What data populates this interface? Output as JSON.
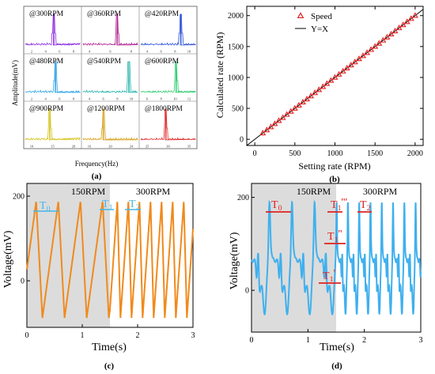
{
  "chart_data": [
    {
      "type": "line",
      "panel_label": "(a)",
      "xlabel": "Frequency(Hz)",
      "ylabel": "Amplitude(mV)",
      "subplots": [
        {
          "label": "@300RPM",
          "color": "#8a2be2",
          "peak_hz": 5,
          "x_ticks": [
            "2",
            "4",
            "6",
            "8"
          ]
        },
        {
          "label": "@360RPM",
          "color": "#b0208f",
          "peak_hz": 6,
          "x_ticks": [
            "4",
            "6",
            "8"
          ]
        },
        {
          "label": "@420RPM",
          "color": "#2b4fd8",
          "peak_hz": 7,
          "x_ticks": [
            "4",
            "6",
            "8",
            "10"
          ]
        },
        {
          "label": "@480RPM",
          "color": "#2aa3e6",
          "peak_hz": 8,
          "x_ticks": [
            "2",
            "4",
            "6",
            "8"
          ]
        },
        {
          "label": "@540RPM",
          "color": "#20b2aa",
          "peak_hz": 9,
          "x_ticks": [
            "4",
            "6",
            "8",
            "10"
          ]
        },
        {
          "label": "@600RPM",
          "color": "#2ecc71",
          "peak_hz": 10,
          "x_ticks": [
            "6",
            "8",
            "10",
            "12"
          ]
        },
        {
          "label": "@900RPM",
          "color": "#d4c21a",
          "peak_hz": 15,
          "x_ticks": [
            "10",
            "15",
            "20"
          ]
        },
        {
          "label": "@1200RPM",
          "color": "#d4a017",
          "peak_hz": 20,
          "x_ticks": [
            "16",
            "20",
            "24"
          ]
        },
        {
          "label": "@1800RPM",
          "color": "#e03030",
          "peak_hz": 30,
          "x_ticks": [
            "25",
            "30",
            "35"
          ]
        }
      ]
    },
    {
      "type": "scatter",
      "panel_label": "(b)",
      "xlabel": "Setting rate  (RPM)",
      "ylabel": "Calculated rate  (RPM)",
      "xlim": [
        -100,
        2100
      ],
      "ylim": [
        -100,
        2150
      ],
      "x_ticks": [
        0,
        500,
        1000,
        1500,
        2000
      ],
      "y_ticks": [
        0,
        500,
        1000,
        1500,
        2000
      ],
      "legend_position": "top-left",
      "series": [
        {
          "name": "Speed",
          "marker": "triangle",
          "color": "#e02020",
          "x": [
            100,
            150,
            200,
            250,
            300,
            350,
            400,
            450,
            500,
            550,
            600,
            650,
            700,
            750,
            800,
            850,
            900,
            950,
            1000,
            1050,
            1100,
            1150,
            1200,
            1250,
            1300,
            1350,
            1400,
            1450,
            1500,
            1550,
            1600,
            1650,
            1700,
            1750,
            1800,
            1850,
            1900,
            1950,
            2000
          ],
          "y": [
            100,
            150,
            200,
            250,
            300,
            350,
            400,
            450,
            500,
            550,
            600,
            650,
            700,
            750,
            800,
            850,
            900,
            950,
            1000,
            1050,
            1100,
            1150,
            1200,
            1250,
            1300,
            1350,
            1400,
            1450,
            1500,
            1550,
            1600,
            1650,
            1700,
            1750,
            1800,
            1850,
            1900,
            1950,
            2000
          ]
        },
        {
          "name": "Y=X",
          "type": "line",
          "color": "#000000",
          "x": [
            -100,
            2100
          ],
          "y": [
            -100,
            2100
          ]
        }
      ]
    },
    {
      "type": "line",
      "panel_label": "(c)",
      "xlabel": "Time(s)",
      "ylabel": "Voltage(mV)",
      "xlim": [
        0,
        3
      ],
      "ylim": [
        -110,
        230
      ],
      "x_ticks": [
        0,
        1,
        2,
        3
      ],
      "y_ticks": [
        0,
        200
      ],
      "region_labels": [
        "150RPM",
        "300RPM"
      ],
      "shaded_until_s": 1.5,
      "color": "#f08a1c",
      "periods": {
        "before_s": 0.4,
        "after_s": 0.2
      },
      "annotations": [
        "T0",
        "T1",
        "T2"
      ]
    },
    {
      "type": "line",
      "panel_label": "(d)",
      "xlabel": "Time(s)",
      "ylabel": "Voltage(mV)",
      "xlim": [
        0,
        3
      ],
      "ylim": [
        -90,
        230
      ],
      "x_ticks": [
        0,
        1,
        2,
        3
      ],
      "y_ticks": [
        0,
        200
      ],
      "region_labels": [
        "150RPM",
        "300RPM"
      ],
      "shaded_until_s": 1.5,
      "color": "#3fb0ee",
      "periods": {
        "before_s": 0.4,
        "after_s": 0.2
      },
      "annotations": [
        "T0",
        "T1'''",
        "T1''",
        "T1'",
        "T2"
      ]
    }
  ]
}
